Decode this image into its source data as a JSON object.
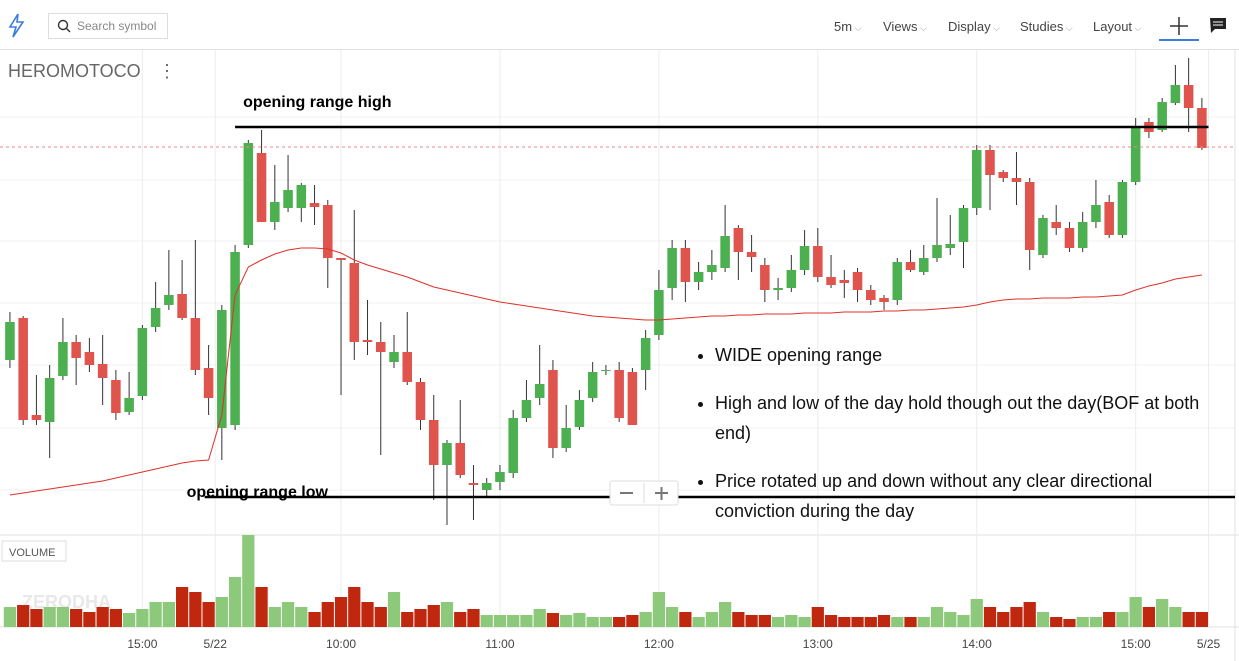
{
  "chart_data": {
    "type": "candlestick",
    "symbol": "HEROMOTOCO",
    "toolbar": {
      "search_placeholder": "Search symbol",
      "interval": "5m",
      "menus": [
        "Views",
        "Display",
        "Studies",
        "Layout"
      ]
    },
    "volume_label": "VOLUME",
    "watermark": "ZERODHA",
    "xlim": [
      -0.75,
      92.5
    ],
    "ylim": [
      0,
      485
    ],
    "vlim": [
      0,
      92
    ],
    "xticks": [
      {
        "value": 10,
        "label": "15:00"
      },
      {
        "value": 15.5,
        "label": "5/22"
      },
      {
        "value": 25,
        "label": "10:00"
      },
      {
        "value": 37,
        "label": "11:00"
      },
      {
        "value": 49,
        "label": "12:00"
      },
      {
        "value": 61,
        "label": "13:00"
      },
      {
        "value": 73,
        "label": "14:00"
      },
      {
        "value": 85,
        "label": "15:00"
      },
      {
        "value": 90.5,
        "label": "5/25"
      }
    ],
    "up_color": "#4caf50",
    "down_color": "#e0544e",
    "vol_up_color": "#8dc97a",
    "vol_down_color": "#c0270f",
    "ma_color": "#e0302a",
    "open": [
      175,
      217,
      120,
      113,
      159,
      193,
      183,
      171,
      155,
      123,
      139,
      208,
      230,
      241,
      217,
      167,
      107,
      110,
      290,
      382,
      313,
      327,
      327,
      332,
      330,
      277,
      272,
      195,
      193,
      173,
      183,
      153,
      115,
      70,
      92,
      52,
      45,
      53,
      62,
      117,
      137,
      165,
      87,
      108,
      137,
      165,
      165,
      163,
      165,
      200,
      247,
      287,
      253,
      263,
      267,
      307,
      283,
      270,
      245,
      247,
      265,
      289,
      258,
      255,
      263,
      245,
      237,
      235,
      273,
      263,
      277,
      287,
      293,
      327,
      385,
      363,
      357,
      353,
      280,
      313,
      307,
      287,
      313,
      333,
      300,
      353,
      413,
      405,
      432,
      450,
      427
    ],
    "high": [
      223,
      219,
      160,
      170,
      217,
      200,
      197,
      200,
      165,
      163,
      210,
      253,
      285,
      275,
      295,
      190,
      230,
      290,
      395,
      405,
      370,
      380,
      352,
      350,
      335,
      277,
      325,
      235,
      213,
      200,
      223,
      157,
      140,
      95,
      135,
      70,
      57,
      70,
      125,
      155,
      190,
      175,
      130,
      145,
      173,
      170,
      173,
      167,
      205,
      265,
      295,
      295,
      273,
      285,
      330,
      310,
      300,
      277,
      257,
      280,
      305,
      307,
      280,
      265,
      267,
      250,
      240,
      277,
      285,
      290,
      337,
      320,
      330,
      390,
      390,
      365,
      383,
      357,
      320,
      330,
      313,
      323,
      355,
      340,
      355,
      417,
      417,
      437,
      470,
      477,
      437
    ],
    "low": [
      167,
      110,
      110,
      77,
      155,
      150,
      163,
      130,
      115,
      120,
      135,
      203,
      225,
      215,
      160,
      120,
      75,
      105,
      287,
      313,
      305,
      323,
      313,
      310,
      247,
      140,
      175,
      180,
      80,
      167,
      150,
      105,
      35,
      10,
      57,
      15,
      37,
      45,
      57,
      113,
      130,
      77,
      83,
      105,
      133,
      160,
      113,
      110,
      145,
      195,
      235,
      233,
      245,
      255,
      263,
      255,
      263,
      233,
      235,
      243,
      260,
      253,
      247,
      237,
      233,
      230,
      225,
      230,
      263,
      260,
      273,
      280,
      267,
      320,
      325,
      353,
      330,
      265,
      277,
      300,
      283,
      283,
      307,
      297,
      297,
      350,
      397,
      403,
      430,
      403,
      385
    ],
    "close": [
      213,
      115,
      115,
      157,
      193,
      177,
      170,
      157,
      122,
      137,
      207,
      227,
      240,
      217,
      165,
      137,
      225,
      283,
      392,
      313,
      333,
      345,
      350,
      328,
      277,
      275,
      193,
      193,
      183,
      183,
      153,
      115,
      70,
      92,
      60,
      50,
      52,
      63,
      117,
      135,
      151,
      87,
      107,
      135,
      163,
      165,
      117,
      110,
      197,
      245,
      287,
      253,
      263,
      270,
      299,
      283,
      278,
      245,
      247,
      265,
      289,
      258,
      250,
      252,
      245,
      235,
      233,
      273,
      265,
      277,
      290,
      291,
      327,
      385,
      360,
      357,
      353,
      285,
      317,
      307,
      287,
      313,
      330,
      300,
      353,
      407,
      403,
      433,
      450,
      427,
      387
    ],
    "volume": [
      20,
      22,
      18,
      20,
      20,
      18,
      15,
      20,
      18,
      14,
      18,
      25,
      25,
      40,
      35,
      25,
      30,
      50,
      92,
      40,
      20,
      25,
      20,
      15,
      25,
      30,
      40,
      25,
      20,
      35,
      15,
      18,
      22,
      25,
      15,
      18,
      12,
      12,
      12,
      12,
      18,
      14,
      12,
      14,
      10,
      10,
      10,
      12,
      15,
      35,
      20,
      15,
      10,
      15,
      25,
      15,
      12,
      12,
      10,
      12,
      10,
      20,
      12,
      10,
      10,
      10,
      12,
      10,
      10,
      10,
      20,
      15,
      12,
      28,
      20,
      15,
      20,
      25,
      15,
      10,
      8,
      10,
      10,
      15,
      15,
      30,
      20,
      28,
      20,
      15,
      15
    ],
    "ma": [
      40,
      42,
      44,
      46,
      48,
      50,
      52,
      54,
      57,
      60,
      63,
      66,
      69,
      72,
      74,
      75,
      120,
      240,
      268,
      275,
      281,
      285,
      287,
      287,
      286,
      282,
      275,
      270,
      266,
      262,
      258,
      253,
      248,
      245,
      242,
      239,
      236,
      233,
      231,
      229,
      227,
      225,
      223,
      221,
      219,
      218,
      217,
      216,
      215,
      215,
      216,
      217,
      218,
      219,
      219,
      220,
      220,
      221,
      221,
      221,
      222,
      222,
      222,
      223,
      223,
      223,
      224,
      224,
      225,
      225,
      226,
      227,
      228,
      230,
      233,
      235,
      236,
      236,
      237,
      237,
      237,
      238,
      238,
      239,
      240,
      245,
      249,
      252,
      256,
      258,
      260
    ],
    "last_price": 388,
    "levels": [
      {
        "label": "opening range high",
        "value": 408,
        "from": 17,
        "to": 90.5
      },
      {
        "label": "opening range low",
        "value": 38,
        "from": 14.7,
        "to": 92.5
      }
    ],
    "notes": [
      "WIDE opening range",
      "High and low of the day hold though out the day(BOF at both end)",
      "Price rotated up and down without any clear directional conviction during the day"
    ]
  }
}
